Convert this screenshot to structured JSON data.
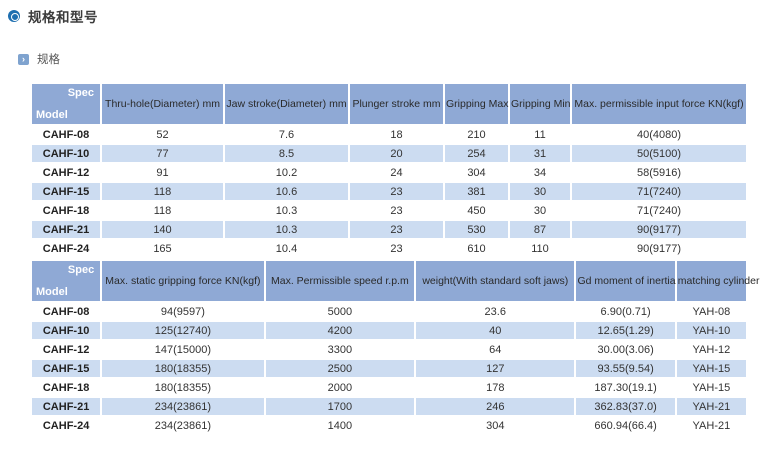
{
  "page": {
    "title": "规格和型号",
    "section_label": "规格"
  },
  "corner": {
    "top": "Spec",
    "bottom": "Model"
  },
  "table1": {
    "columns": [
      "Thru-hole(Diameter) mm",
      "Jaw stroke(Diameter) mm",
      "Plunger stroke mm",
      "Gripping Max",
      "Gripping Min",
      "Max. permissible input force KN(kgf)"
    ],
    "rows": [
      {
        "model": "CAHF-08",
        "values": [
          "52",
          "7.6",
          "18",
          "210",
          "11",
          "40(4080)"
        ]
      },
      {
        "model": "CAHF-10",
        "values": [
          "77",
          "8.5",
          "20",
          "254",
          "31",
          "50(5100)"
        ]
      },
      {
        "model": "CAHF-12",
        "values": [
          "91",
          "10.2",
          "24",
          "304",
          "34",
          "58(5916)"
        ]
      },
      {
        "model": "CAHF-15",
        "values": [
          "118",
          "10.6",
          "23",
          "381",
          "30",
          "71(7240)"
        ]
      },
      {
        "model": "CAHF-18",
        "values": [
          "118",
          "10.3",
          "23",
          "450",
          "30",
          "71(7240)"
        ]
      },
      {
        "model": "CAHF-21",
        "values": [
          "140",
          "10.3",
          "23",
          "530",
          "87",
          "90(9177)"
        ]
      },
      {
        "model": "CAHF-24",
        "values": [
          "165",
          "10.4",
          "23",
          "610",
          "110",
          "90(9177)"
        ]
      }
    ]
  },
  "table2": {
    "columns": [
      "Max. static gripping force KN(kgf)",
      "Max. Permissible speed r.p.m",
      "weight(With standard soft jaws)",
      "Gd moment of inertia",
      "matching cylinder"
    ],
    "rows": [
      {
        "model": "CAHF-08",
        "values": [
          "94(9597)",
          "5000",
          "23.6",
          "6.90(0.71)",
          "YAH-08"
        ]
      },
      {
        "model": "CAHF-10",
        "values": [
          "125(12740)",
          "4200",
          "40",
          "12.65(1.29)",
          "YAH-10"
        ]
      },
      {
        "model": "CAHF-12",
        "values": [
          "147(15000)",
          "3300",
          "64",
          "30.00(3.06)",
          "YAH-12"
        ]
      },
      {
        "model": "CAHF-15",
        "values": [
          "180(18355)",
          "2500",
          "127",
          "93.55(9.54)",
          "YAH-15"
        ]
      },
      {
        "model": "CAHF-18",
        "values": [
          "180(18355)",
          "2000",
          "178",
          "187.30(19.1)",
          "YAH-15"
        ]
      },
      {
        "model": "CAHF-21",
        "values": [
          "234(23861)",
          "1700",
          "246",
          "362.83(37.0)",
          "YAH-21"
        ]
      },
      {
        "model": "CAHF-24",
        "values": [
          "234(23861)",
          "1400",
          "304",
          "660.94(66.4)",
          "YAH-21"
        ]
      }
    ]
  },
  "colors": {
    "header_blue": "#8fa9d5",
    "row_alt_blue": "#ccdcf1",
    "title_icon_blue": "#1e6fb0",
    "section_icon_blue": "#7fa3cf"
  },
  "icons": {
    "title_bullet": "donut-bullet-icon",
    "section_bullet": "chevron-square-icon",
    "section_chevron_glyph": "›"
  }
}
